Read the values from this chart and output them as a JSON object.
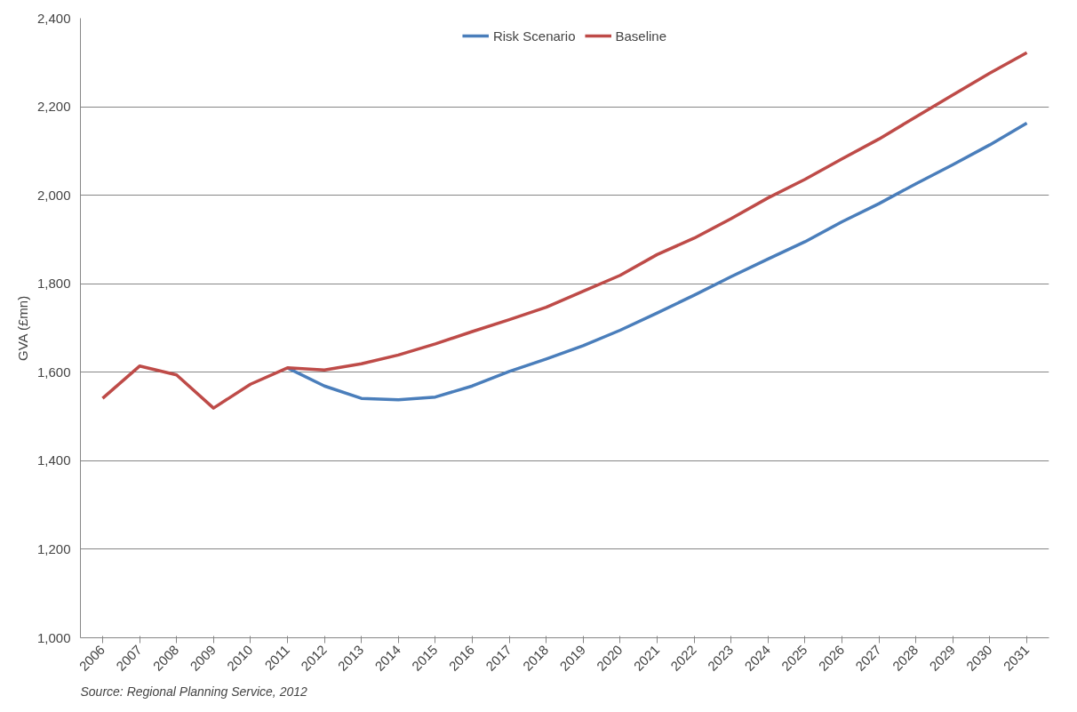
{
  "chart_data": {
    "type": "line",
    "ylabel": "GVA (£mn)",
    "categories": [
      "2006",
      "2007",
      "2008",
      "2009",
      "2010",
      "2011",
      "2012",
      "2013",
      "2014",
      "2015",
      "2016",
      "2017",
      "2018",
      "2019",
      "2020",
      "2021",
      "2022",
      "2023",
      "2024",
      "2025",
      "2026",
      "2027",
      "2028",
      "2029",
      "2030",
      "2031"
    ],
    "series": [
      {
        "name": "Risk Scenario",
        "color": "#4a7ebb",
        "values": [
          null,
          null,
          null,
          null,
          null,
          1610,
          1569,
          1541,
          1538,
          1544,
          1569,
          1602,
          1630,
          1660,
          1695,
          1734,
          1774,
          1816,
          1856,
          1895,
          1940,
          1981,
          2026,
          2069,
          2114,
          2163
        ]
      },
      {
        "name": "Baseline",
        "color": "#be4b48",
        "values": [
          1541,
          1614,
          1594,
          1519,
          1573,
          1610,
          1605,
          1619,
          1639,
          1664,
          1692,
          1719,
          1747,
          1783,
          1819,
          1866,
          1903,
          1947,
          1994,
          2036,
          2082,
          2127,
          2177,
          2227,
          2276,
          2322
        ]
      }
    ],
    "ylim": [
      1000,
      2400
    ],
    "yticks": [
      {
        "value": 1000,
        "label": "1,000"
      },
      {
        "value": 1200,
        "label": "1,200"
      },
      {
        "value": 1400,
        "label": "1,400"
      },
      {
        "value": 1600,
        "label": "1,600"
      },
      {
        "value": 1800,
        "label": "1,800"
      },
      {
        "value": 2000,
        "label": "2,000"
      },
      {
        "value": 2200,
        "label": "2,200"
      },
      {
        "value": 2400,
        "label": "2,400"
      }
    ],
    "grid": "y",
    "legend": "top",
    "marker": "none",
    "line_style": "solid",
    "annotations": [
      "Source: Regional Planning Service, 2012"
    ]
  }
}
